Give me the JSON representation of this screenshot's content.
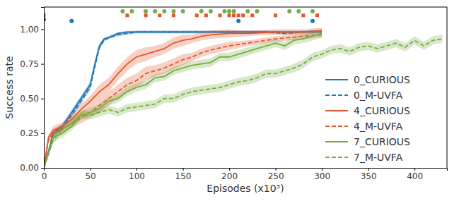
{
  "chart_data": {
    "type": "line",
    "x_label": "Episodes (x10³)",
    "y_label": "Success rate",
    "xlim": [
      0,
      435
    ],
    "ylim": [
      0,
      1.16
    ],
    "xticks": [
      0,
      50,
      100,
      150,
      200,
      250,
      300,
      350,
      400
    ],
    "yticks": [
      {
        "value": 0,
        "label": "0.00"
      },
      {
        "value": 0.25,
        "label": "0.25"
      },
      {
        "value": 0.5,
        "label": "0.50"
      },
      {
        "value": 0.75,
        "label": "0.75"
      },
      {
        "value": 1,
        "label": "1.00"
      }
    ],
    "legend": "right",
    "series": [
      {
        "name": "0_CURIOUS",
        "color": "#1f77b4",
        "type": "line",
        "line_style": "solid",
        "x": [
          0,
          5,
          10,
          20,
          30,
          40,
          50,
          55,
          60,
          65,
          70,
          80,
          90,
          100,
          120,
          140,
          160,
          180,
          200,
          220,
          240,
          260,
          280,
          300
        ],
        "values": [
          0,
          0.12,
          0.25,
          0.3,
          0.4,
          0.5,
          0.6,
          0.75,
          0.88,
          0.93,
          0.94,
          0.97,
          0.98,
          0.98,
          0.98,
          0.98,
          0.98,
          0.98,
          0.98,
          0.98,
          0.98,
          0.98,
          0.98,
          0.98
        ],
        "error": [
          0,
          0.01,
          0.02,
          0.02,
          0.02,
          0.02,
          0.02,
          0.02,
          0.02,
          0.01,
          0.01,
          0.01,
          0.01,
          0.01,
          0.01,
          0.01,
          0.01,
          0.01,
          0.01,
          0.01,
          0.01,
          0.01,
          0.01,
          0.01
        ]
      },
      {
        "name": "0_M-UVFA",
        "color": "#1f77b4",
        "type": "line",
        "line_style": "dashed",
        "x": [
          0,
          5,
          10,
          20,
          30,
          40,
          50,
          55,
          60,
          65,
          70,
          80,
          90,
          100,
          120,
          140,
          160,
          180,
          200,
          220,
          240,
          260,
          280,
          300
        ],
        "values": [
          0,
          0.1,
          0.24,
          0.29,
          0.38,
          0.48,
          0.58,
          0.73,
          0.87,
          0.92,
          0.94,
          0.96,
          0.97,
          0.98,
          0.98,
          0.98,
          0.98,
          0.98,
          0.98,
          0.98,
          0.98,
          0.97,
          0.98,
          0.99
        ],
        "error": [
          0,
          0.01,
          0.02,
          0.02,
          0.02,
          0.02,
          0.02,
          0.02,
          0.02,
          0.01,
          0.01,
          0.01,
          0.01,
          0.01,
          0.01,
          0.01,
          0.01,
          0.01,
          0.01,
          0.01,
          0.01,
          0.01,
          0.01,
          0.01
        ]
      },
      {
        "name": "4_CURIOUS",
        "color": "#e4572e",
        "type": "line",
        "line_style": "solid",
        "x": [
          0,
          5,
          10,
          20,
          30,
          40,
          50,
          60,
          70,
          80,
          90,
          100,
          110,
          120,
          130,
          140,
          150,
          160,
          170,
          180,
          200,
          220,
          250,
          280,
          300
        ],
        "values": [
          0,
          0.22,
          0.27,
          0.3,
          0.35,
          0.42,
          0.48,
          0.55,
          0.6,
          0.68,
          0.75,
          0.8,
          0.82,
          0.84,
          0.86,
          0.9,
          0.92,
          0.93,
          0.95,
          0.96,
          0.97,
          0.97,
          0.98,
          0.98,
          0.99
        ],
        "error": [
          0,
          0.02,
          0.03,
          0.03,
          0.03,
          0.04,
          0.04,
          0.05,
          0.05,
          0.05,
          0.05,
          0.05,
          0.05,
          0.04,
          0.04,
          0.04,
          0.04,
          0.03,
          0.03,
          0.03,
          0.03,
          0.02,
          0.02,
          0.02,
          0.02
        ]
      },
      {
        "name": "4_M-UVFA",
        "color": "#e4572e",
        "type": "line",
        "line_style": "dashed",
        "x": [
          0,
          5,
          10,
          20,
          30,
          40,
          50,
          60,
          70,
          80,
          90,
          100,
          110,
          120,
          130,
          140,
          150,
          160,
          170,
          180,
          200,
          220,
          250,
          280,
          300
        ],
        "values": [
          0,
          0.2,
          0.25,
          0.28,
          0.32,
          0.36,
          0.4,
          0.45,
          0.5,
          0.55,
          0.6,
          0.63,
          0.68,
          0.7,
          0.72,
          0.75,
          0.78,
          0.8,
          0.83,
          0.85,
          0.88,
          0.9,
          0.93,
          0.95,
          0.96
        ],
        "error": [
          0,
          0.02,
          0.03,
          0.03,
          0.03,
          0.04,
          0.04,
          0.05,
          0.05,
          0.05,
          0.05,
          0.05,
          0.05,
          0.04,
          0.04,
          0.04,
          0.04,
          0.03,
          0.03,
          0.03,
          0.03,
          0.02,
          0.02,
          0.02,
          0.02
        ]
      },
      {
        "name": "7_CURIOUS",
        "color": "#77ad3f",
        "type": "line",
        "line_style": "solid",
        "x": [
          0,
          10,
          20,
          30,
          40,
          50,
          60,
          70,
          80,
          90,
          100,
          110,
          120,
          130,
          140,
          150,
          160,
          170,
          180,
          190,
          200,
          210,
          220,
          230,
          240,
          250,
          260,
          270,
          280,
          290,
          300
        ],
        "values": [
          0,
          0.22,
          0.25,
          0.3,
          0.38,
          0.4,
          0.43,
          0.48,
          0.5,
          0.55,
          0.58,
          0.6,
          0.65,
          0.66,
          0.7,
          0.72,
          0.74,
          0.75,
          0.76,
          0.8,
          0.8,
          0.82,
          0.84,
          0.86,
          0.88,
          0.9,
          0.88,
          0.92,
          0.93,
          0.95,
          0.97
        ],
        "error": [
          0,
          0.03,
          0.03,
          0.03,
          0.03,
          0.03,
          0.03,
          0.03,
          0.03,
          0.03,
          0.03,
          0.03,
          0.03,
          0.03,
          0.03,
          0.03,
          0.03,
          0.03,
          0.03,
          0.03,
          0.03,
          0.03,
          0.03,
          0.03,
          0.03,
          0.03,
          0.03,
          0.03,
          0.03,
          0.03,
          0.03
        ]
      },
      {
        "name": "7_M-UVFA",
        "color": "#77ad3f",
        "type": "line",
        "line_style": "dashed",
        "x": [
          0,
          10,
          20,
          30,
          40,
          50,
          60,
          70,
          80,
          90,
          100,
          110,
          120,
          130,
          140,
          150,
          160,
          170,
          180,
          190,
          200,
          210,
          220,
          230,
          240,
          250,
          260,
          270,
          280,
          290,
          300,
          310,
          320,
          330,
          340,
          350,
          360,
          370,
          380,
          390,
          400,
          410,
          420,
          430
        ],
        "values": [
          0,
          0.2,
          0.28,
          0.32,
          0.38,
          0.38,
          0.4,
          0.42,
          0.4,
          0.43,
          0.44,
          0.45,
          0.46,
          0.5,
          0.5,
          0.53,
          0.55,
          0.56,
          0.57,
          0.58,
          0.6,
          0.62,
          0.63,
          0.65,
          0.68,
          0.68,
          0.7,
          0.72,
          0.75,
          0.8,
          0.82,
          0.85,
          0.86,
          0.84,
          0.87,
          0.88,
          0.86,
          0.88,
          0.9,
          0.87,
          0.92,
          0.88,
          0.92,
          0.93
        ],
        "error": [
          0,
          0.03,
          0.03,
          0.03,
          0.03,
          0.03,
          0.03,
          0.03,
          0.03,
          0.03,
          0.03,
          0.03,
          0.03,
          0.03,
          0.03,
          0.03,
          0.03,
          0.03,
          0.03,
          0.03,
          0.03,
          0.03,
          0.03,
          0.03,
          0.03,
          0.03,
          0.03,
          0.03,
          0.03,
          0.03,
          0.03,
          0.03,
          0.03,
          0.03,
          0.03,
          0.03,
          0.03,
          0.03,
          0.03,
          0.03,
          0.03,
          0.03,
          0.03,
          0.03
        ]
      },
      {
        "color": "#1f77b4",
        "type": "scatter",
        "marker": "circle",
        "x": [
          0,
          30,
          210,
          290
        ],
        "values": [
          1.07,
          1.06,
          1.06,
          1.06
        ]
      },
      {
        "color": "#e4572e",
        "type": "scatter",
        "marker": "square",
        "x": [
          0,
          90,
          110,
          125,
          140,
          165,
          175,
          190,
          200,
          205,
          210,
          215,
          225,
          250,
          280,
          295
        ],
        "values": [
          1.1,
          1.1,
          1.1,
          1.1,
          1.1,
          1.1,
          1.1,
          1.1,
          1.1,
          1.1,
          1.1,
          1.1,
          1.1,
          1.1,
          1.1,
          1.1
        ]
      },
      {
        "color": "#77ad3f",
        "type": "scatter",
        "marker": "circle",
        "x": [
          85,
          95,
          110,
          120,
          130,
          140,
          150,
          170,
          180,
          195,
          200,
          205,
          220,
          230,
          265,
          275,
          290
        ],
        "values": [
          1.13,
          1.13,
          1.13,
          1.13,
          1.13,
          1.13,
          1.13,
          1.13,
          1.13,
          1.13,
          1.13,
          1.13,
          1.13,
          1.13,
          1.13,
          1.13,
          1.13
        ]
      }
    ]
  }
}
